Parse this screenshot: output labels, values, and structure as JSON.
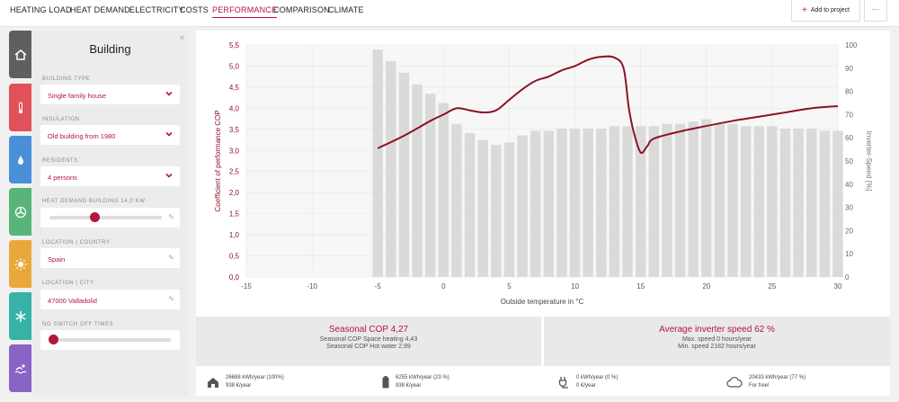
{
  "nav": {
    "tabs": [
      {
        "label": "HEATING LOAD"
      },
      {
        "label": "HEAT DEMAND"
      },
      {
        "label": "ELECTRICITY"
      },
      {
        "label": "COSTS"
      },
      {
        "label": "PERFORMANCE",
        "active": true
      },
      {
        "label": "COMPARISON"
      },
      {
        "label": "CLIMATE"
      }
    ],
    "add_label": "Add to project",
    "more_label": "···"
  },
  "colors": {
    "accent": "#b5163b",
    "bars": "#dadada",
    "curve": "#8b1224"
  },
  "sidebar_tabs": [
    {
      "icon": "house-icon",
      "color": "#5f5f5f"
    },
    {
      "icon": "thermometer-icon",
      "color": "#e0515a"
    },
    {
      "icon": "water-drop-icon",
      "color": "#4a90d9"
    },
    {
      "icon": "fan-icon",
      "color": "#59b47a"
    },
    {
      "icon": "sun-icon",
      "color": "#e8a93a"
    },
    {
      "icon": "snowflake-icon",
      "color": "#36b3a6"
    },
    {
      "icon": "swimmer-icon",
      "color": "#8a63c7"
    }
  ],
  "panel": {
    "title": "Building",
    "close": "×",
    "building_type_label": "BUILDING TYPE",
    "building_type": "Single family house",
    "insulation_label": "INSULATION",
    "insulation": "Old building from 1980",
    "residents_label": "RESIDENTS",
    "residents": "4 persons",
    "heat_demand_label": "HEAT DEMAND BUILDING 14,0 KW",
    "heat_demand_fraction": 0.4,
    "country_label": "LOCATION | COUNTRY",
    "country": "Spain",
    "city_label": "LOCATION | CITY",
    "city": "47000 Valladolid",
    "switch_off_label": "NO SWITCH OFF TIMES",
    "switch_off_fraction": 0.0
  },
  "chart_data": {
    "type": "bar",
    "xlabel": "Outside temperature in °C",
    "ylabel": "Coefficient of performance COP",
    "y2label": "Inverter-Speed [%]",
    "xlim": [
      -15,
      30
    ],
    "ylim": [
      0,
      5.5
    ],
    "y2lim": [
      0,
      100
    ],
    "xticks": [
      "-15",
      "-10",
      "-5",
      "0",
      "5",
      "10",
      "15",
      "20",
      "25",
      "30"
    ],
    "yticks": [
      "0,0",
      "0,5",
      "1,0",
      "1,5",
      "2,0",
      "2,5",
      "3,0",
      "3,5",
      "4,0",
      "4,5",
      "5,0",
      "5,5"
    ],
    "y2ticks": [
      "0",
      "10",
      "20",
      "30",
      "40",
      "50",
      "60",
      "70",
      "80",
      "90",
      "100"
    ],
    "bars": {
      "name": "Inverter speed",
      "x": [
        -5,
        -4,
        -3,
        -2,
        -1,
        0,
        1,
        2,
        3,
        4,
        5,
        6,
        7,
        8,
        9,
        10,
        11,
        12,
        13,
        14,
        15,
        16,
        17,
        18,
        19,
        20,
        21,
        22,
        23,
        24,
        25,
        26,
        27,
        28,
        29,
        30
      ],
      "values": [
        98,
        93,
        88,
        83,
        79,
        75,
        66,
        62,
        59,
        57,
        58,
        61,
        63,
        63,
        64,
        64,
        64,
        64,
        65,
        65,
        65,
        65,
        66,
        66,
        67,
        68,
        66,
        66,
        65,
        65,
        65,
        64,
        64,
        64,
        63,
        63
      ]
    },
    "line": {
      "name": "COP",
      "x": [
        -5,
        -3,
        -1,
        0,
        1,
        2,
        3,
        4,
        5,
        6,
        7,
        8,
        9,
        10,
        11,
        12,
        13,
        13.7,
        14.1,
        14.5,
        15,
        15.5,
        16,
        18,
        20,
        22,
        24,
        26,
        28,
        30
      ],
      "values": [
        3.05,
        3.35,
        3.7,
        3.85,
        4.0,
        3.95,
        3.9,
        3.95,
        4.2,
        4.45,
        4.65,
        4.75,
        4.9,
        5.0,
        5.15,
        5.22,
        5.2,
        4.95,
        4.0,
        3.4,
        2.95,
        3.1,
        3.28,
        3.45,
        3.58,
        3.7,
        3.8,
        3.9,
        4.0,
        4.05
      ]
    }
  },
  "summary": {
    "left_title": "Seasonal COP 4,27",
    "left_line1": "Seasonal COP Space heating 4,43",
    "left_line2": "Seasonal COP Hot water 2,99",
    "right_title": "Average inverter speed 62 %",
    "right_line1": "Max. speed 0 hours/year",
    "right_line2": "Min. speed 2182 hours/year"
  },
  "energy": [
    {
      "icon": "house-icon",
      "line1": "26688 kWh/year (100%)",
      "line2": "938 €/year"
    },
    {
      "icon": "battery-icon",
      "line1": "6255 kWh/year (23 %)",
      "line2": "938 €/year"
    },
    {
      "icon": "plug-icon",
      "line1": "0 kWh/year (0 %)",
      "line2": "0 €/year"
    },
    {
      "icon": "cloud-icon",
      "line1": "20433 kWh/year (77 %)",
      "line2": "For free!"
    }
  ]
}
